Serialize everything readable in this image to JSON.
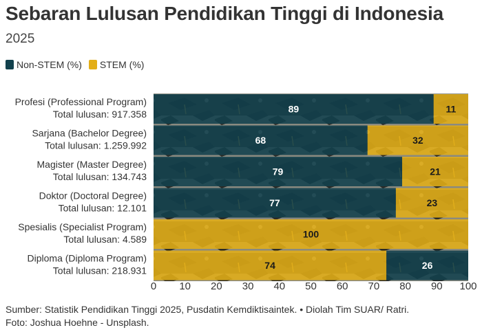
{
  "header": {
    "title": "Sebaran Lulusan Pendidikan Tinggi di Indonesia",
    "subtitle": "2025"
  },
  "legend": [
    {
      "label": "Non-STEM (%)",
      "color": "#12414d"
    },
    {
      "label": "STEM (%)",
      "color": "#e3ae17"
    }
  ],
  "chart_data": {
    "type": "bar",
    "orientation": "horizontal",
    "stacked": true,
    "categories": [
      {
        "name": "Profesi (Professional Program)",
        "total": "Total lulusan: 917.358"
      },
      {
        "name": "Sarjana (Bachelor Degree)",
        "total": "Total lulusan: 1.259.992"
      },
      {
        "name": "Magister (Master Degree)",
        "total": "Total lulusan: 134.743"
      },
      {
        "name": "Doktor (Doctoral Degree)",
        "total": "Total lulusan: 12.101"
      },
      {
        "name": "Spesialis (Specialist Program)",
        "total": "Total lulusan: 4.589"
      },
      {
        "name": "Diploma (Diploma Program)",
        "total": "Total lulusan: 218.931"
      }
    ],
    "segments": [
      [
        {
          "series": 0,
          "value": 89
        },
        {
          "series": 1,
          "value": 11
        }
      ],
      [
        {
          "series": 0,
          "value": 68
        },
        {
          "series": 1,
          "value": 32
        }
      ],
      [
        {
          "series": 0,
          "value": 79
        },
        {
          "series": 1,
          "value": 21
        }
      ],
      [
        {
          "series": 0,
          "value": 77
        },
        {
          "series": 1,
          "value": 23
        }
      ],
      [
        {
          "series": 1,
          "value": 100
        }
      ],
      [
        {
          "series": 1,
          "value": 74
        },
        {
          "series": 0,
          "value": 26
        }
      ]
    ],
    "series": [
      {
        "name": "Non-STEM (%)",
        "color": "#12414d"
      },
      {
        "name": "STEM (%)",
        "color": "#e3ae17"
      }
    ],
    "xlim": [
      0,
      100
    ],
    "xticks": [
      0,
      10,
      20,
      30,
      40,
      50,
      60,
      70,
      80,
      90,
      100
    ],
    "grid": false,
    "legend_position": "top-left"
  },
  "footer": {
    "source": "Sumber: Statistik Pendidikan Tinggi 2025, Pusdatin Kemdiktisaintek. • Diolah Tim SUAR/ Ratri.",
    "photo": "Foto: Joshua Hoehne - Unsplash."
  }
}
